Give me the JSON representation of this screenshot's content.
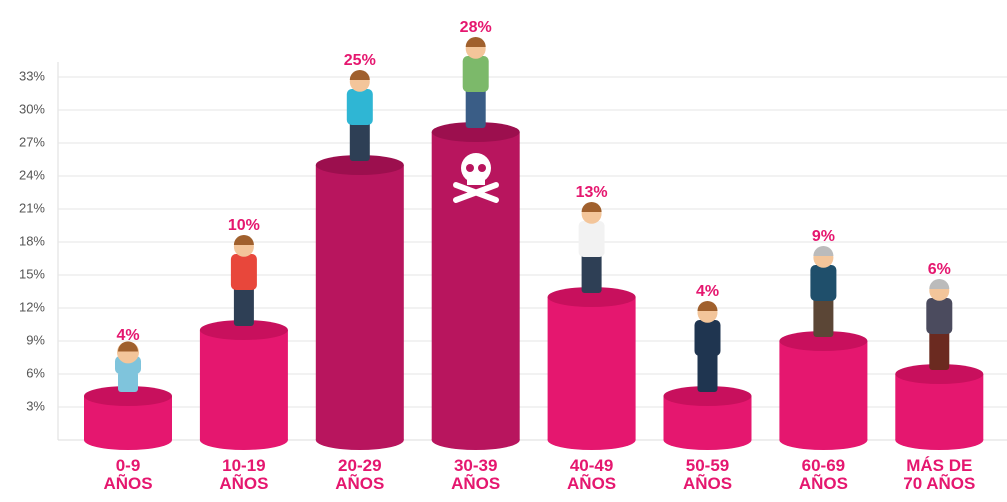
{
  "chart_data": {
    "type": "bar",
    "categories": [
      "0-9\nAÑOS",
      "10-19\nAÑOS",
      "20-29\nAÑOS",
      "30-39\nAÑOS",
      "40-49\nAÑOS",
      "50-59\nAÑOS",
      "60-69\nAÑOS",
      "MÁS DE\n70 AÑOS"
    ],
    "values": [
      4,
      10,
      25,
      28,
      13,
      4,
      9,
      6
    ],
    "value_labels": [
      "4%",
      "10%",
      "25%",
      "28%",
      "13%",
      "4%",
      "9%",
      "6%"
    ],
    "colors": [
      "#e5176f",
      "#e5176f",
      "#b8155e",
      "#b8155e",
      "#e5176f",
      "#e5176f",
      "#e5176f",
      "#e5176f"
    ],
    "ylim": [
      0,
      34
    ],
    "yticks": [
      {
        "value": 3,
        "label": "3%"
      },
      {
        "value": 6,
        "label": "6%"
      },
      {
        "value": 9,
        "label": "9%"
      },
      {
        "value": 12,
        "label": "12%"
      },
      {
        "value": 15,
        "label": "15%"
      },
      {
        "value": 18,
        "label": "18%"
      },
      {
        "value": 21,
        "label": "21%"
      },
      {
        "value": 24,
        "label": "24%"
      },
      {
        "value": 27,
        "label": "27%"
      },
      {
        "value": 30,
        "label": "30%"
      },
      {
        "value": 33,
        "label": "33%"
      }
    ],
    "grid": true
  }
}
